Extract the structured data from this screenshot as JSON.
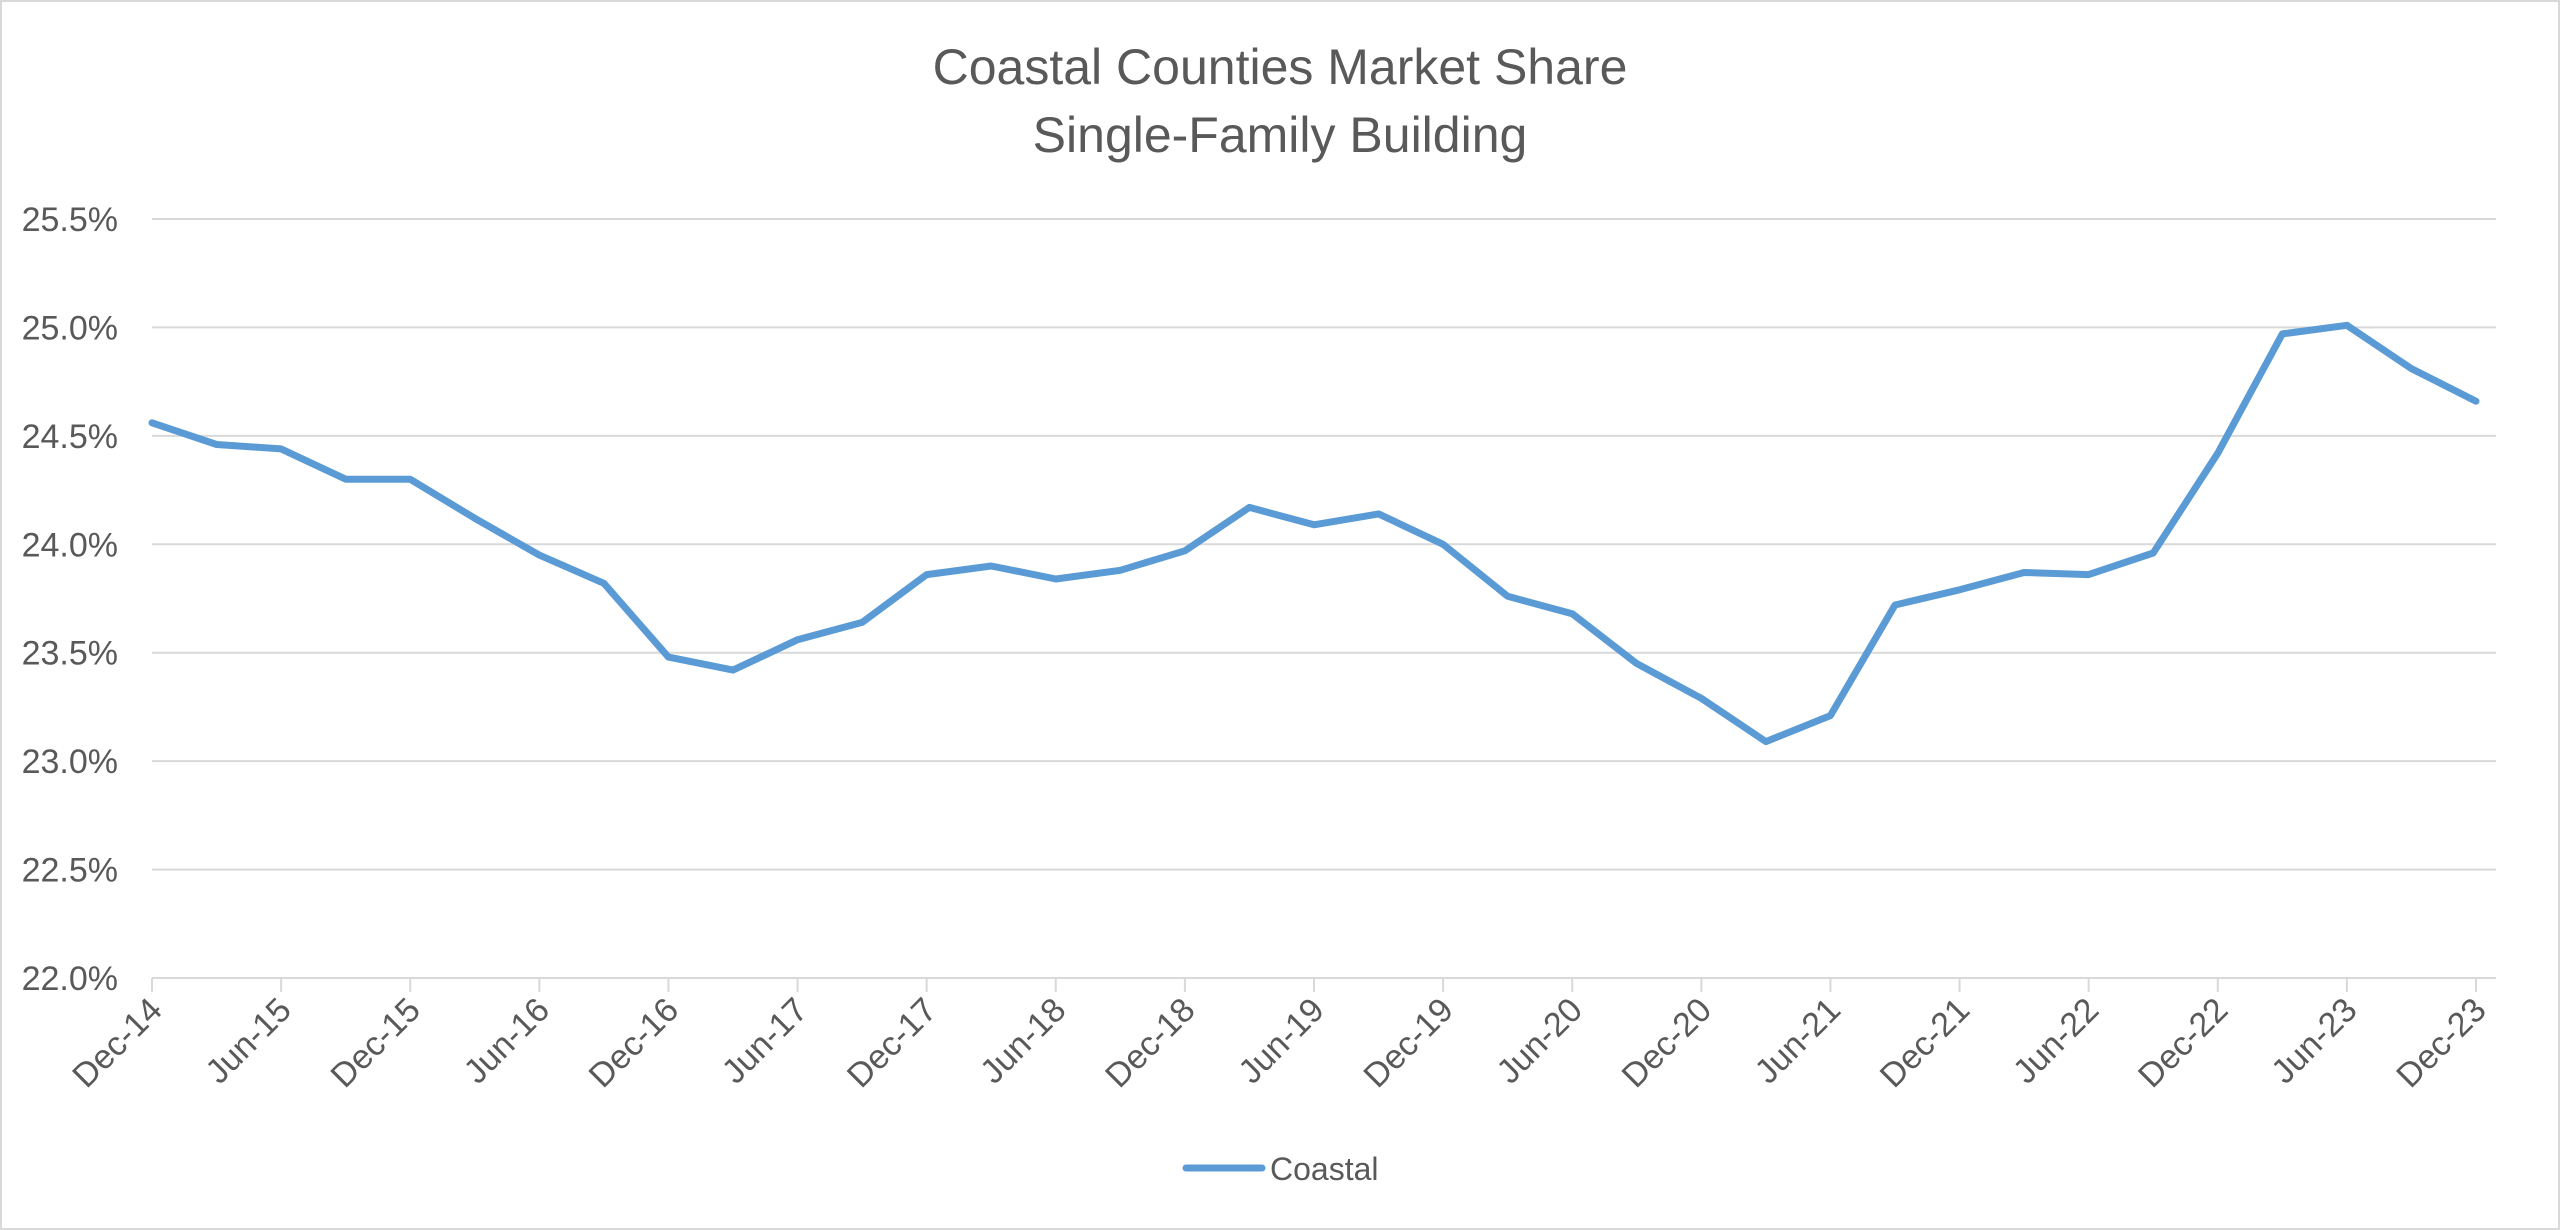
{
  "chart_data": {
    "type": "line",
    "title": "Coastal Counties Market Share",
    "subtitle": "Single-Family Building",
    "xlabel": "",
    "ylabel": "",
    "x_tick_labels": [
      "Dec-14",
      "Jun-15",
      "Dec-15",
      "Jun-16",
      "Dec-16",
      "Jun-17",
      "Dec-17",
      "Jun-18",
      "Dec-18",
      "Jun-19",
      "Dec-19",
      "Jun-20",
      "Dec-20",
      "Jun-21",
      "Dec-21",
      "Jun-22",
      "Dec-22",
      "Jun-23",
      "Dec-23"
    ],
    "y_tick_labels": [
      "22.0%",
      "22.5%",
      "23.0%",
      "23.5%",
      "24.0%",
      "24.5%",
      "25.0%",
      "25.5%"
    ],
    "ylim": [
      22.0,
      25.5
    ],
    "x_range": [
      "Dec-14",
      "Dec-23"
    ],
    "grid": "horizontal",
    "legend": "bottom",
    "x": [
      "Dec-14",
      "Mar-15",
      "Jun-15",
      "Sep-15",
      "Dec-15",
      "Mar-16",
      "Jun-16",
      "Sep-16",
      "Dec-16",
      "Mar-17",
      "Jun-17",
      "Sep-17",
      "Dec-17",
      "Mar-18",
      "Jun-18",
      "Sep-18",
      "Dec-18",
      "Mar-19",
      "Jun-19",
      "Sep-19",
      "Dec-19",
      "Mar-20",
      "Jun-20",
      "Sep-20",
      "Dec-20",
      "Mar-21",
      "Jun-21",
      "Sep-21",
      "Dec-21",
      "Mar-22",
      "Jun-22",
      "Sep-22",
      "Dec-22",
      "Mar-23",
      "Jun-23",
      "Sep-23",
      "Dec-23"
    ],
    "series": [
      {
        "name": "Coastal",
        "color": "#5b9bd5",
        "values": [
          24.56,
          24.46,
          24.44,
          24.3,
          24.3,
          24.12,
          23.95,
          23.82,
          23.48,
          23.42,
          23.56,
          23.64,
          23.86,
          23.9,
          23.84,
          23.88,
          23.97,
          24.17,
          24.09,
          24.14,
          24.0,
          23.76,
          23.68,
          23.45,
          23.29,
          23.09,
          23.21,
          23.72,
          23.79,
          23.87,
          23.86,
          23.96,
          24.42,
          24.97,
          25.01,
          24.81,
          24.66
        ]
      }
    ]
  },
  "colors": {
    "series": "#5b9bd5",
    "grid": "#d9d9d9",
    "axis": "#d9d9d9",
    "text": "#595959",
    "border": "#d9d9d9"
  }
}
